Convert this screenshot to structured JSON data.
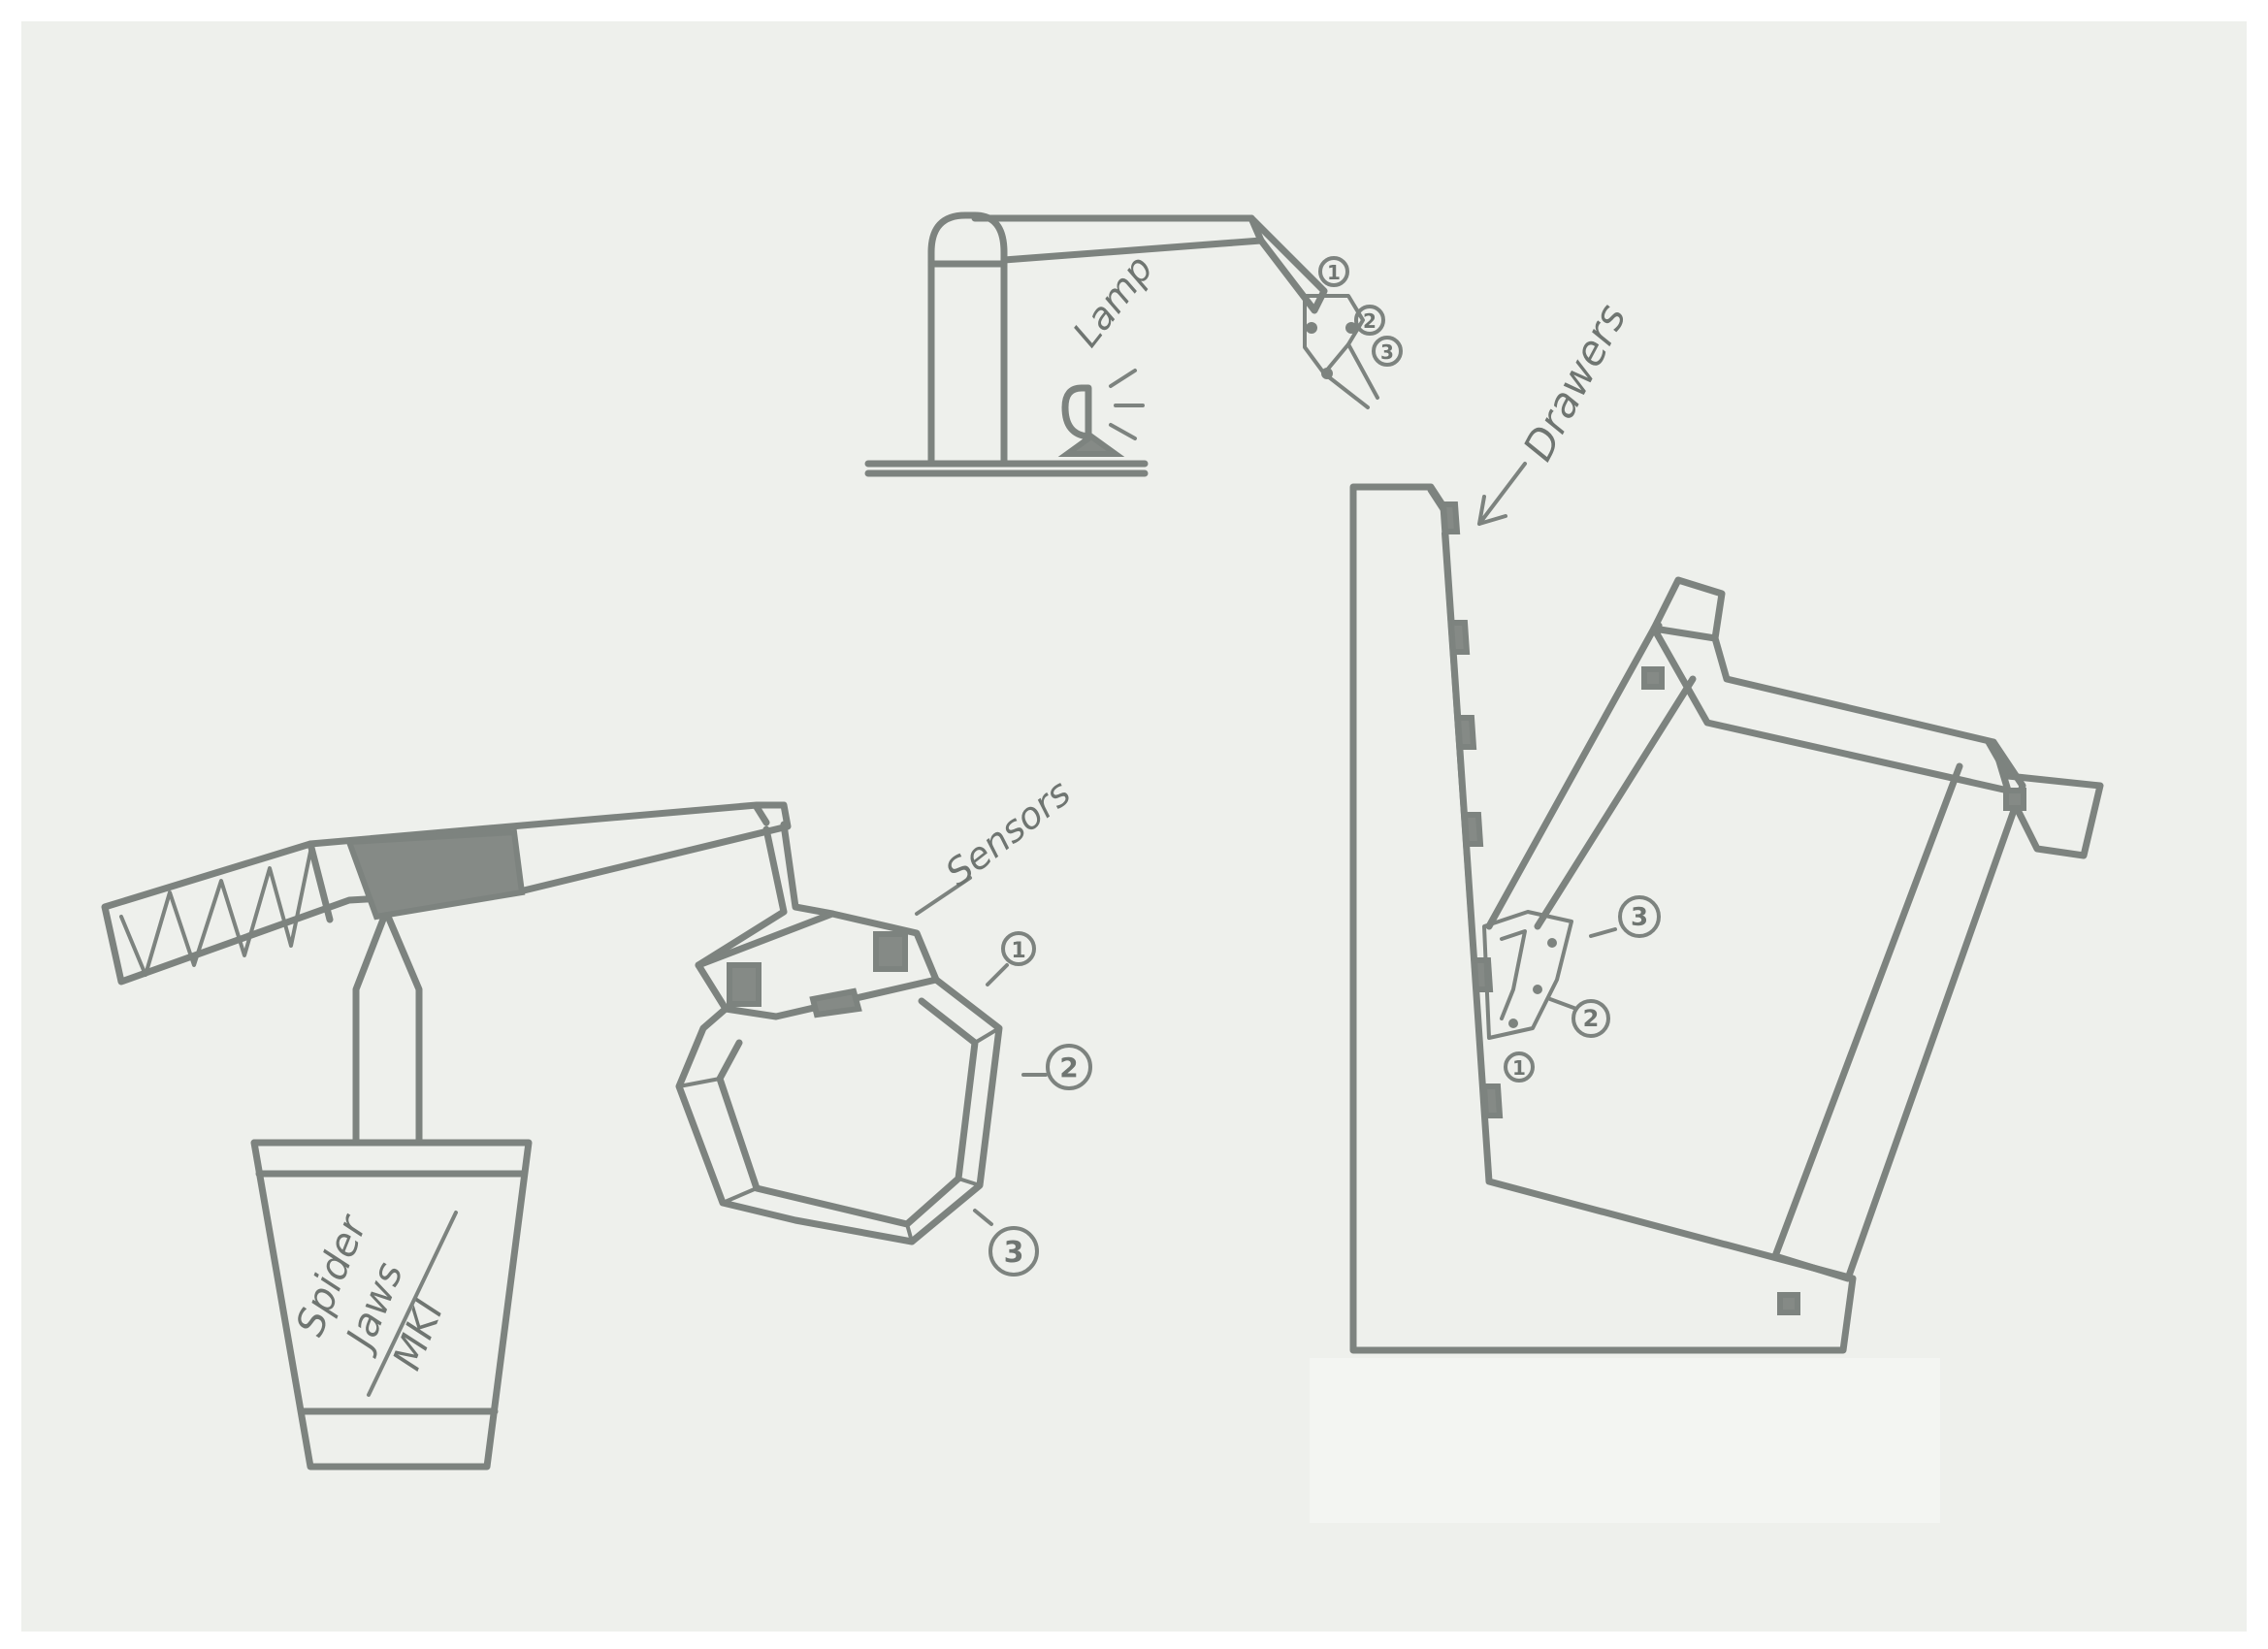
{
  "labels": {
    "lamp": "Lamp",
    "drawers": "Drawers",
    "sensors": "Sensors",
    "cup_line1": "Spider",
    "cup_line2": "Jaws",
    "cup_line3": "MKI"
  },
  "markers": {
    "top_1": "1",
    "top_2": "2",
    "top_3": "3",
    "left_1": "1",
    "left_2": "2",
    "left_3": "3",
    "right_1": "1",
    "right_2": "2",
    "right_3": "3"
  },
  "colors": {
    "paper": "#eef0ec",
    "ink": "#7d837f",
    "ink_fill": "#858a86"
  }
}
